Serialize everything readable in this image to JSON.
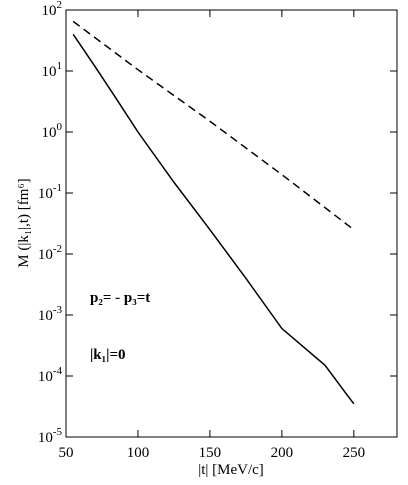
{
  "chart_data": {
    "type": "line",
    "xlabel": "|t| [MeV/c]",
    "ylabel": "M (|k₁|,t) [fm⁶]",
    "annotations": [
      "p₂= - p₃=t",
      "|k₁|=0"
    ],
    "log_y": true,
    "xlim": [
      50,
      280
    ],
    "xticks": [
      50,
      100,
      150,
      200,
      250
    ],
    "ylim": [
      1e-05,
      100
    ],
    "yticks": [
      {
        "value": 1e-05,
        "label": "10^-5"
      },
      {
        "value": 0.0001,
        "label": "10^-4"
      },
      {
        "value": 0.001,
        "label": "10^-3"
      },
      {
        "value": 0.01,
        "label": "10^-2"
      },
      {
        "value": 0.1,
        "label": "10^-1"
      },
      {
        "value": 1,
        "label": "10^0"
      },
      {
        "value": 10,
        "label": "10^1"
      },
      {
        "value": 100,
        "label": "10^2"
      }
    ],
    "series": [
      {
        "color": "#000000",
        "dash": false,
        "x": [
          55,
          70,
          85,
          100,
          125,
          150,
          175,
          200,
          230,
          245,
          250
        ],
        "values": [
          40,
          12,
          3.5,
          1.0,
          0.15,
          0.025,
          0.004,
          0.0006,
          0.00015,
          5e-05,
          3.5e-05
        ]
      },
      {
        "color": "#000000",
        "dash": true,
        "x": [
          55,
          100,
          150,
          200,
          250
        ],
        "values": [
          65,
          10.5,
          1.5,
          0.2,
          0.025
        ]
      }
    ]
  }
}
